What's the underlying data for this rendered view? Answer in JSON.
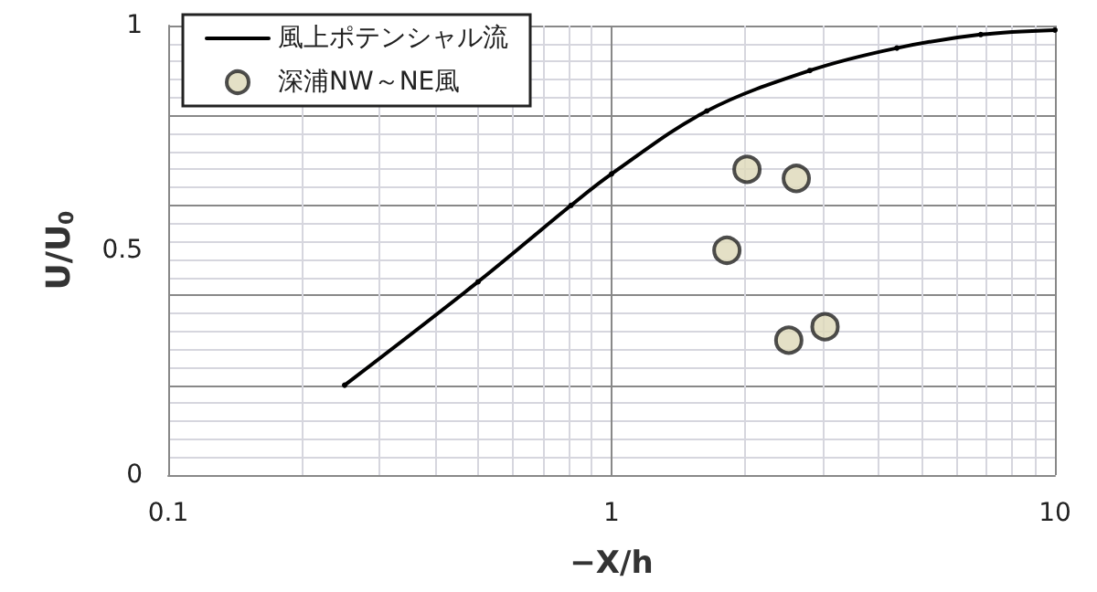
{
  "chart_data": {
    "type": "line",
    "xlabel": "−X/h",
    "ylabel": "U/U$_{0}$",
    "log": "x",
    "xlim": [
      0.1,
      10
    ],
    "xticks": [
      0.1,
      1,
      10
    ],
    "ylim": [
      0,
      1
    ],
    "yticks": [
      0,
      0.5,
      1
    ],
    "grid": true,
    "legend": "top left",
    "series": [
      {
        "name": "風上ポテンシャル流",
        "color": "#000000",
        "marker": "circle",
        "x": [
          0.25,
          0.5,
          0.81,
          1,
          1.64,
          2.8,
          4.4,
          6.8,
          10
        ],
        "values": [
          0.2,
          0.43,
          0.6,
          0.67,
          0.81,
          0.9,
          0.95,
          0.98,
          0.99
        ]
      },
      {
        "name": "深浦NW～NE風",
        "type": "scatter",
        "color": "#ddd8b8",
        "marker": "circle",
        "x": [
          2.02,
          2.61,
          1.82,
          3.03,
          2.51
        ],
        "values": [
          0.68,
          0.66,
          0.5,
          0.33,
          0.3
        ]
      }
    ]
  }
}
